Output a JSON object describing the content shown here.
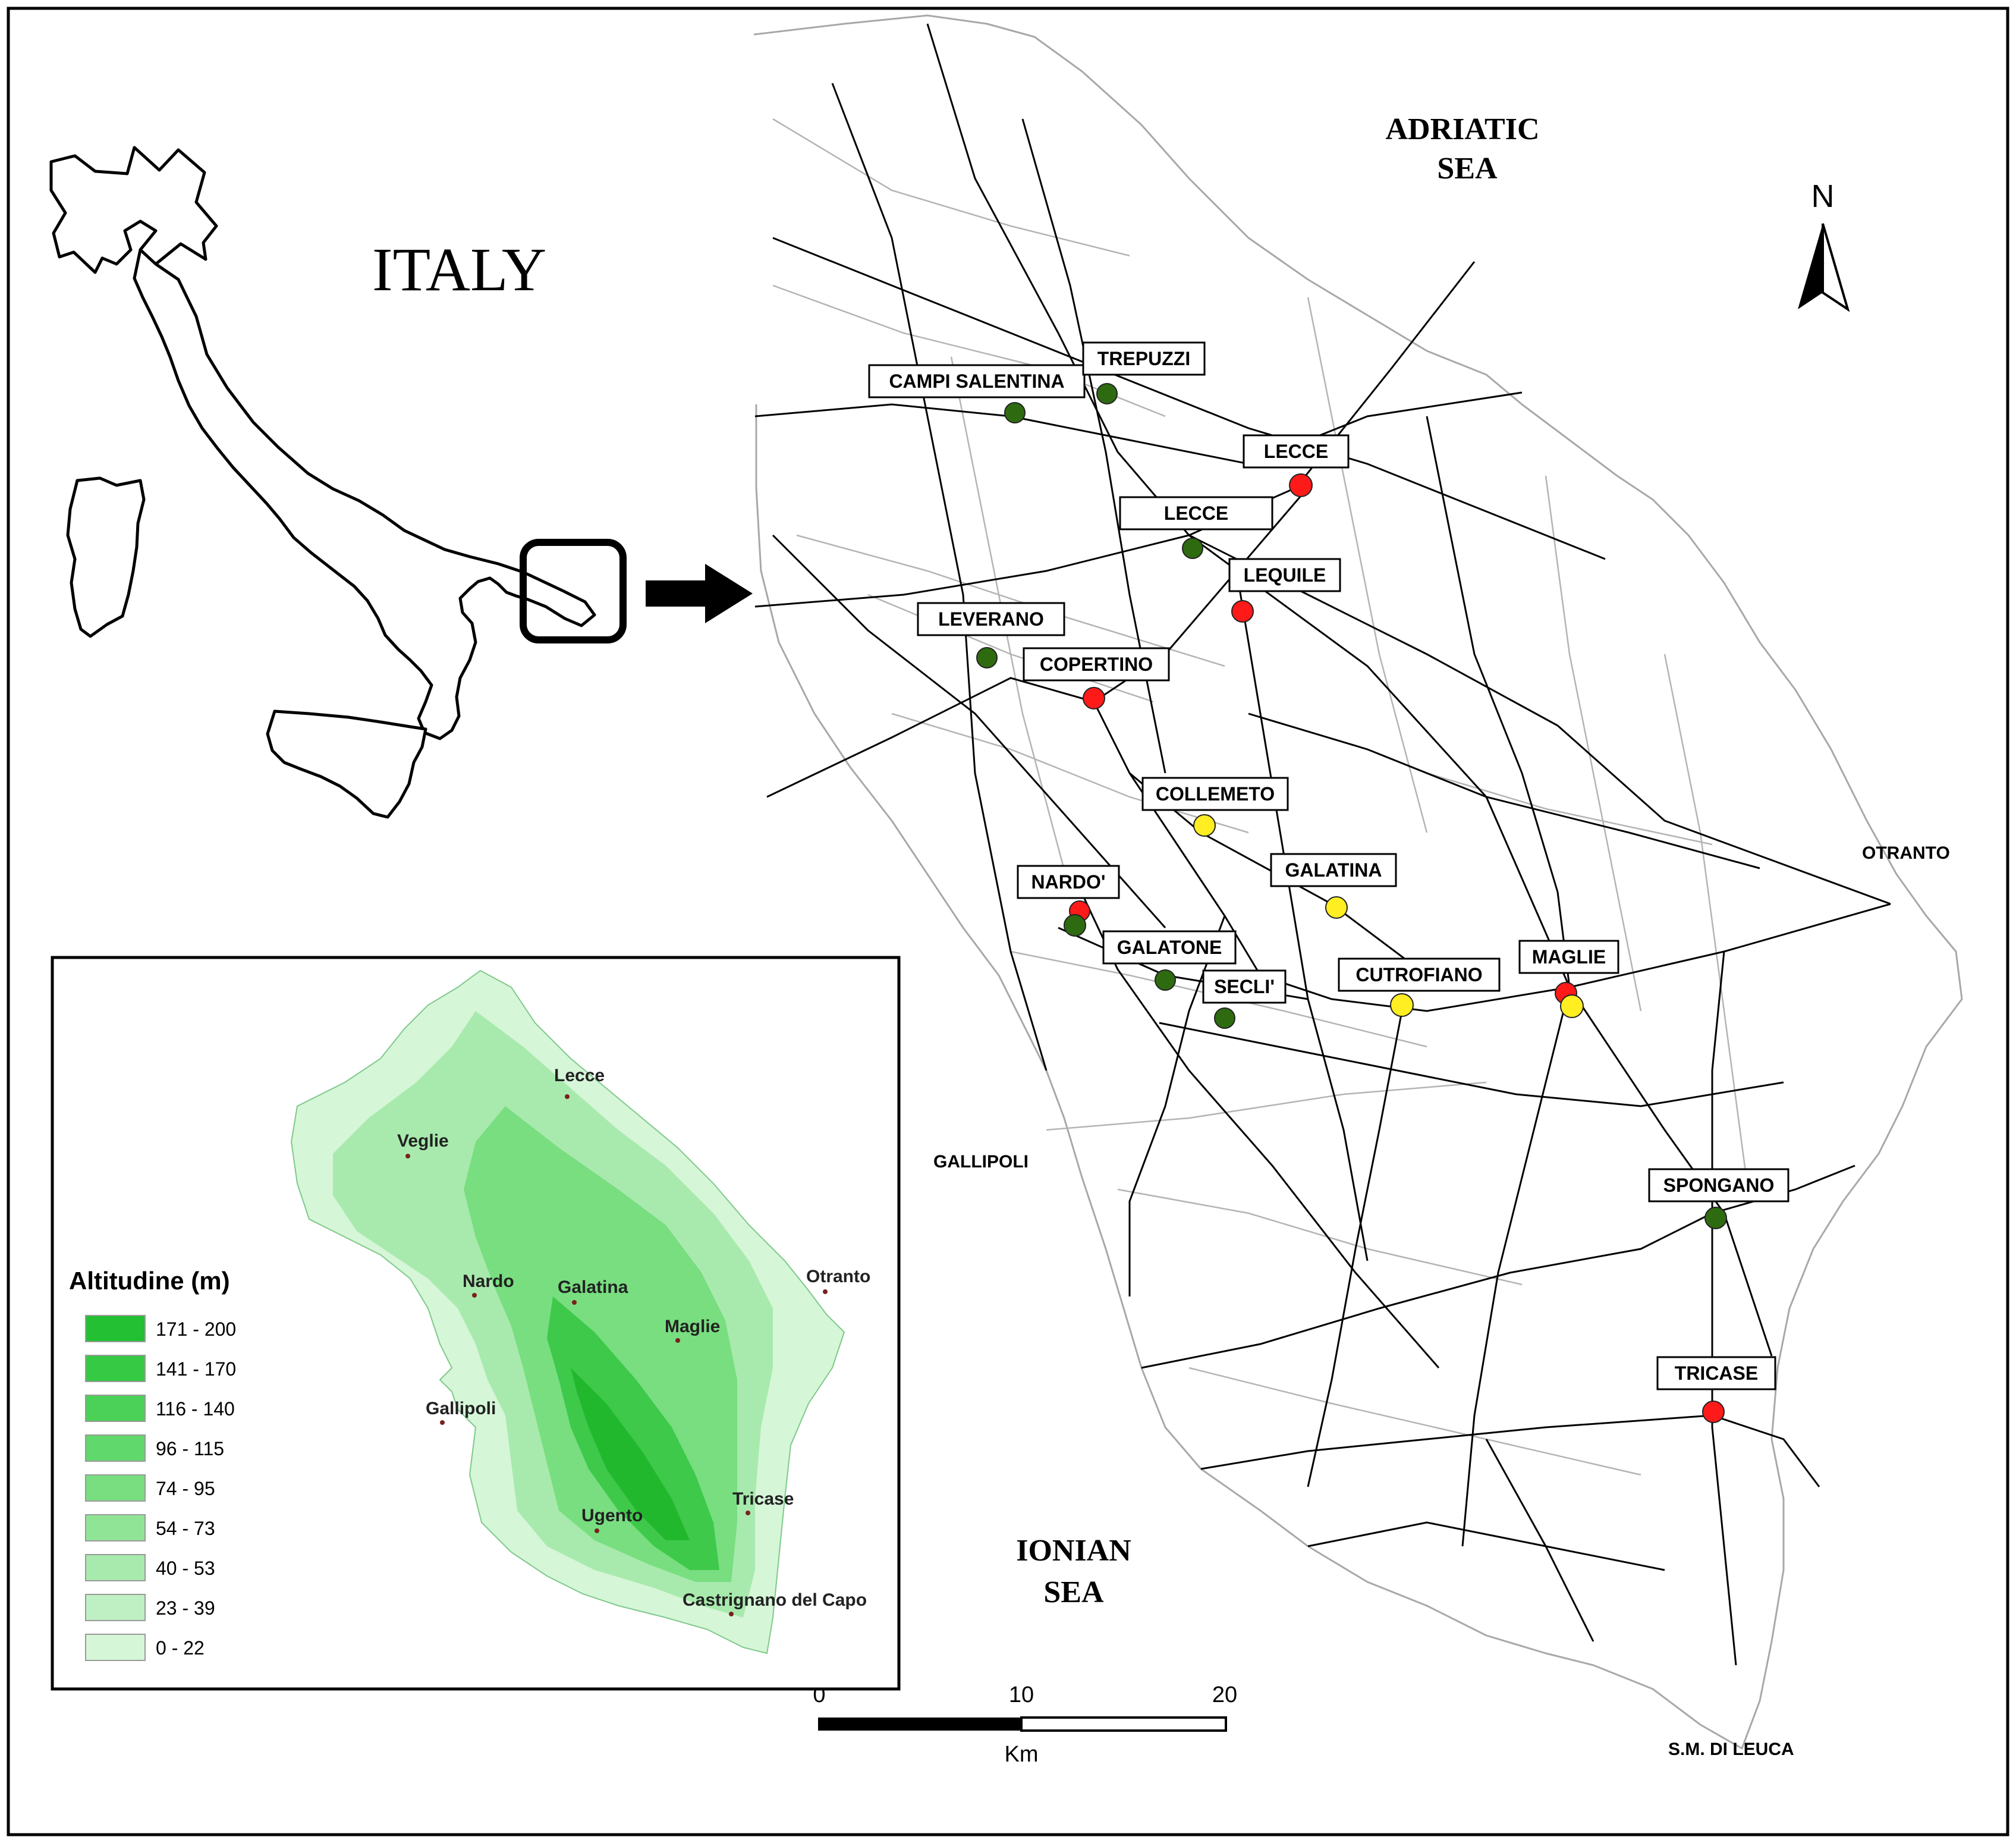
{
  "italy_label": "ITALY",
  "seas": {
    "adriatic": [
      "ADRIATIC",
      "SEA"
    ],
    "ionian": [
      "IONIAN",
      "SEA"
    ]
  },
  "coastal_places": {
    "otranto": "OTRANTO",
    "gallipoli": "GALLIPOLI",
    "leuca": "S.M. DI LEUCA"
  },
  "north_label": "N",
  "sites": [
    {
      "label": "CAMPI SALENTINA",
      "color": "#2e6b10"
    },
    {
      "label": "TREPUZZI",
      "color": "#2e6b10"
    },
    {
      "label": "LECCE",
      "color": "#ff1a1a"
    },
    {
      "label": "LECCE",
      "color": "#2e6b10"
    },
    {
      "label": "LEQUILE",
      "color": "#ff1a1a"
    },
    {
      "label": "LEVERANO",
      "color": "#2e6b10"
    },
    {
      "label": "COPERTINO",
      "color": "#ff1a1a"
    },
    {
      "label": "COLLEMETO",
      "color": "#ffee22"
    },
    {
      "label": "NARDO'",
      "color": "#ff1a1a"
    },
    {
      "label": "GALATINA",
      "color": "#ffee22"
    },
    {
      "label": "GALATONE",
      "color": "#2e6b10"
    },
    {
      "label": "SECLI'",
      "color": "#2e6b10"
    },
    {
      "label": "CUTROFIANO",
      "color": "#ffee22"
    },
    {
      "label": "MAGLIE",
      "color": "#ff1a1a"
    },
    {
      "label": "SPONGANO",
      "color": "#2e6b10"
    },
    {
      "label": "TRICASE",
      "color": "#ff1a1a"
    }
  ],
  "extra_dots": [
    {
      "near": "NARDO'",
      "color": "#2e6b10"
    },
    {
      "near": "MAGLIE",
      "color": "#ffee22"
    }
  ],
  "scale_bar": {
    "ticks": [
      "0",
      "10",
      "20"
    ],
    "unit": "Km"
  },
  "inset": {
    "legend_title": "Altitudine (m)",
    "classes": [
      {
        "range": "171 - 200",
        "color": "#22c032"
      },
      {
        "range": "141 - 170",
        "color": "#36c944"
      },
      {
        "range": "116 - 140",
        "color": "#4bd157"
      },
      {
        "range": "96 - 115",
        "color": "#61d86b"
      },
      {
        "range": "74 - 95",
        "color": "#78de80"
      },
      {
        "range": "54 - 73",
        "color": "#90e496"
      },
      {
        "range": "40 - 53",
        "color": "#a8eaad"
      },
      {
        "range": "23 - 39",
        "color": "#bff0c3"
      },
      {
        "range": "0 - 22",
        "color": "#d6f6d8"
      }
    ],
    "towns": [
      "Lecce",
      "Veglie",
      "Nardo",
      "Galatina",
      "Otranto",
      "Maglie",
      "Gallipoli",
      "Tricase",
      "Ugento",
      "Castrignano del Capo"
    ]
  }
}
